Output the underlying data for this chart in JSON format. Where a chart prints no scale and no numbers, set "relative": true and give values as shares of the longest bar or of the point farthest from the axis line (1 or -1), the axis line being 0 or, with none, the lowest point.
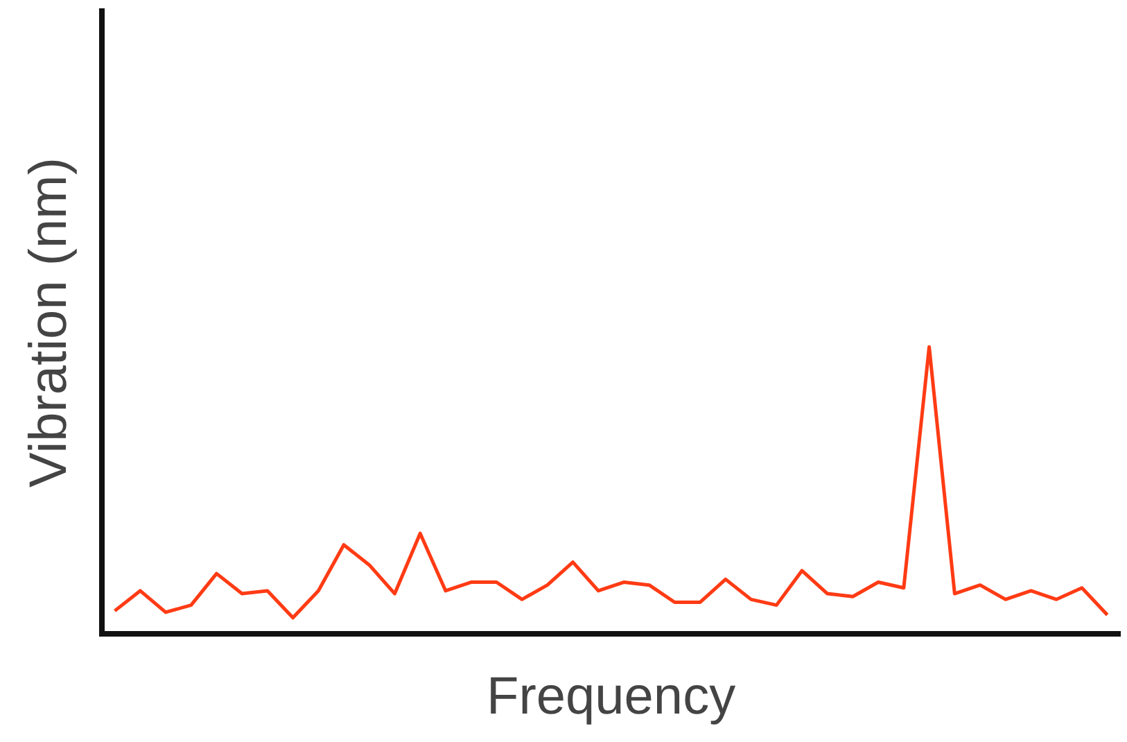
{
  "chart_data": {
    "type": "line",
    "xlabel": "Frequency",
    "ylabel": "Vibration (nm)",
    "relative": true,
    "grid": false,
    "legend": false,
    "marker": "none",
    "line_style": "solid",
    "categories": [
      null,
      null,
      null,
      null,
      null,
      null,
      null,
      null,
      null,
      null,
      null,
      null,
      null,
      null,
      null,
      null,
      null,
      null,
      null,
      null,
      null,
      null,
      null,
      null,
      null,
      null,
      null,
      null,
      null,
      null,
      null,
      null,
      null,
      null,
      null,
      null,
      null,
      null,
      null,
      null
    ],
    "series": [
      {
        "color": "#ff3b14",
        "values": [
          0.08,
          0.15,
          0.075,
          0.1,
          0.21,
          0.14,
          0.15,
          0.056,
          0.15,
          0.31,
          0.24,
          0.14,
          0.35,
          0.15,
          0.18,
          0.18,
          0.12,
          0.17,
          0.25,
          0.15,
          0.18,
          0.17,
          0.11,
          0.11,
          0.19,
          0.12,
          0.1,
          0.22,
          0.14,
          0.13,
          0.18,
          0.16,
          1,
          0.14,
          0.17,
          0.12,
          0.15,
          0.12,
          0.16,
          0.066
        ]
      }
    ]
  }
}
